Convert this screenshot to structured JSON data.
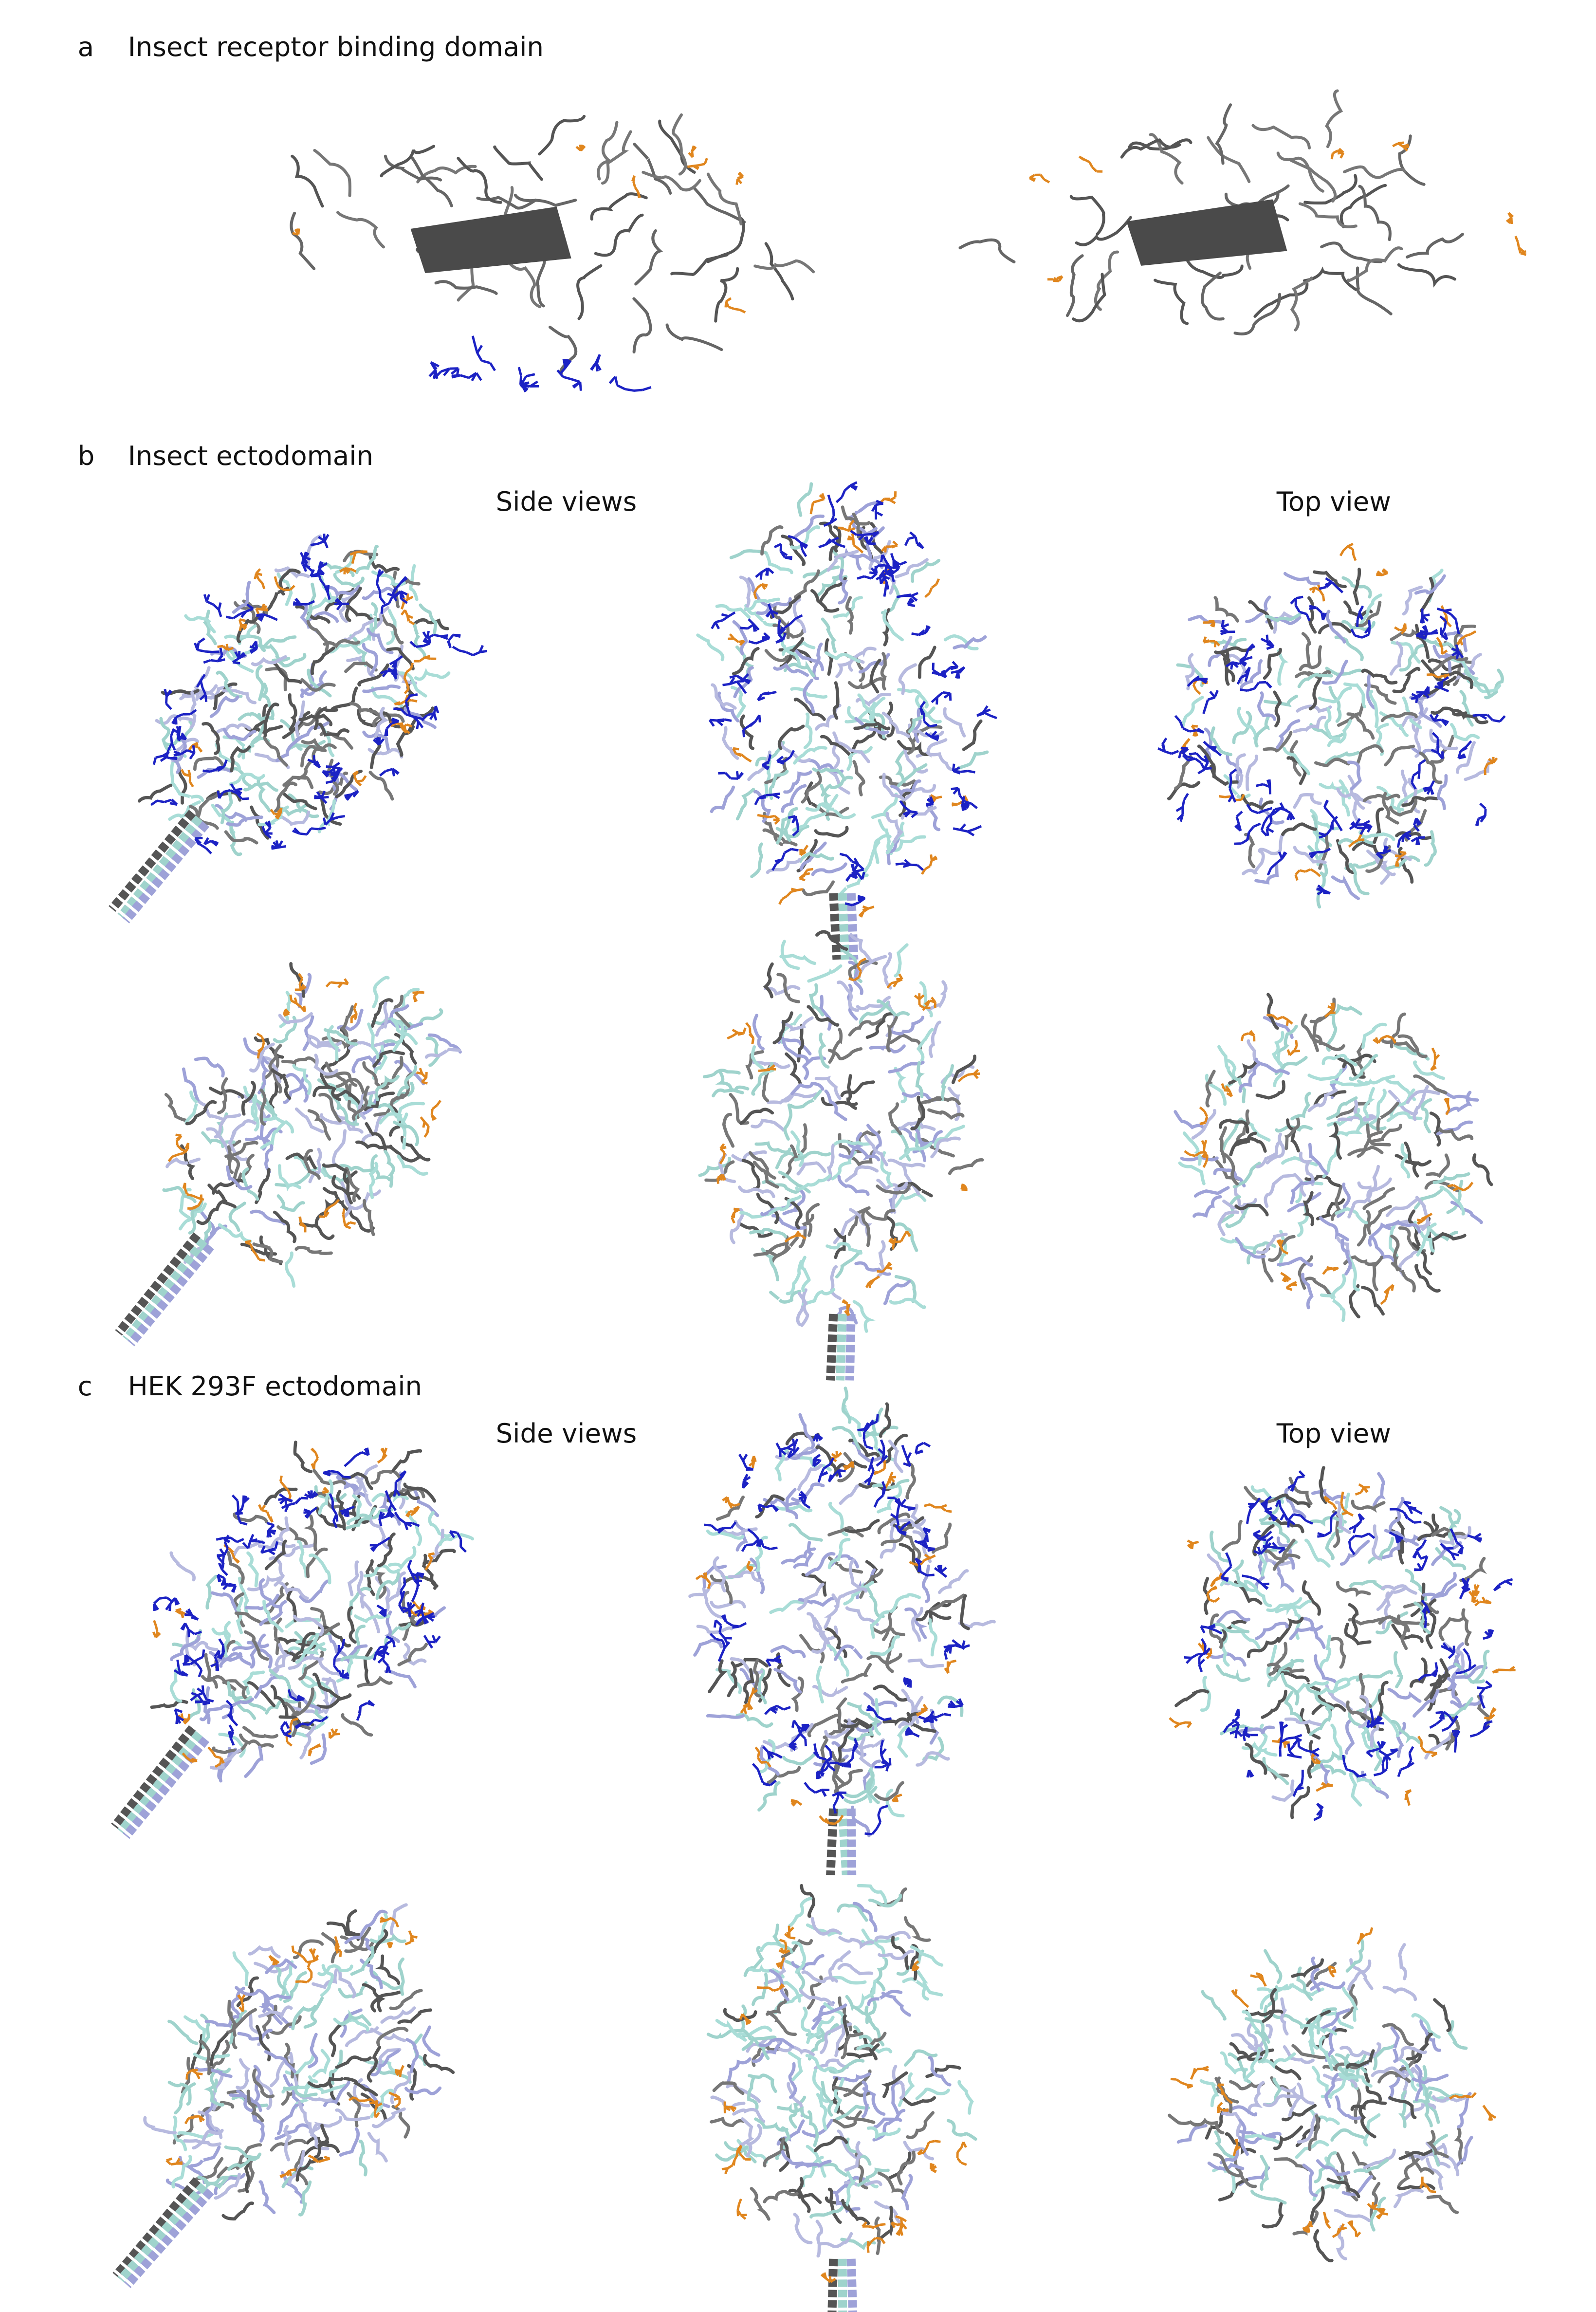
{
  "panels": [
    {
      "letter": "a",
      "title": "Insect receptor binding domain"
    },
    {
      "letter": "b",
      "title": "Insect ectodomain",
      "views": [
        "Side views",
        "Top view"
      ]
    },
    {
      "letter": "c",
      "title": "HEK 293F ectodomain",
      "views": [
        "Side views",
        "Top view"
      ]
    }
  ]
}
